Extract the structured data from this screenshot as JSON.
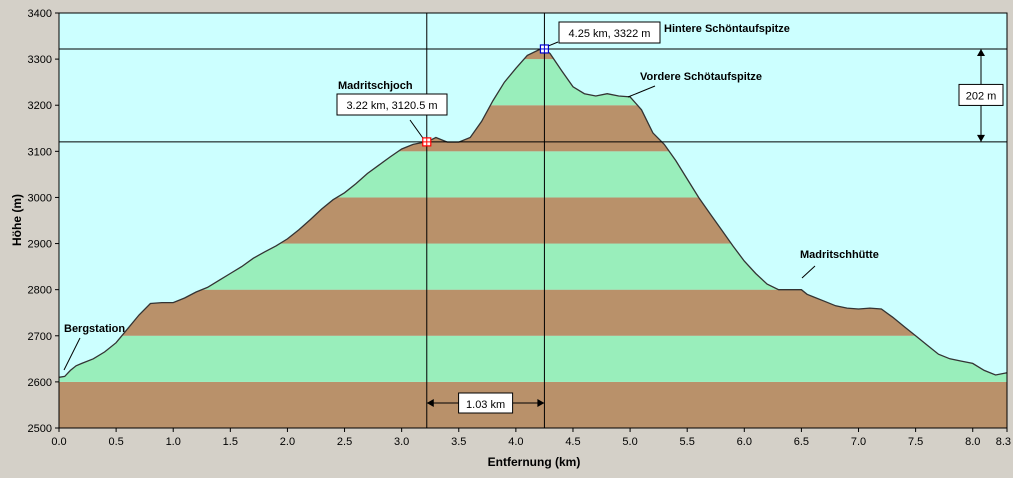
{
  "colors": {
    "background": "#d4d0c8",
    "plot_background": "#ccffff",
    "band_green": "#99eebb",
    "band_brown": "#b9916a",
    "profile_line": "#333333",
    "marker_red": "#ff0000",
    "marker_blue": "#0000cc",
    "callout_box": "#ffffff"
  },
  "chart_data": {
    "type": "area",
    "title": "",
    "xlabel": "Entfernung  (km)",
    "ylabel": "Höhe (m)",
    "xlim": [
      0,
      8.3
    ],
    "ylim": [
      2500,
      3400
    ],
    "grid": false,
    "x_ticks": [
      0,
      0.5,
      1,
      1.5,
      2,
      2.5,
      3,
      3.5,
      4,
      4.5,
      5,
      5.5,
      6,
      6.5,
      7,
      7.5,
      8,
      8.3
    ],
    "x_tick_labels": [
      "0.0",
      "0.5",
      "1.0",
      "1.5",
      "2.0",
      "2.5",
      "3.0",
      "3.5",
      "4.0",
      "4.5",
      "5.0",
      "5.5",
      "6.0",
      "6.5",
      "7.0",
      "7.5",
      "8.0",
      "8.3"
    ],
    "y_ticks": [
      2500,
      2600,
      2700,
      2800,
      2900,
      3000,
      3100,
      3200,
      3300,
      3400
    ],
    "y_tick_labels": [
      "2500",
      "2600",
      "2700",
      "2800",
      "2900",
      "3000",
      "3100",
      "3200",
      "3300",
      "3400"
    ],
    "elevation_bands": {
      "step": 100,
      "from": 2500,
      "to": 3400,
      "colors_bottom_up": [
        "brown",
        "green"
      ]
    },
    "profile": {
      "x": [
        0,
        0.05,
        0.1,
        0.15,
        0.2,
        0.3,
        0.4,
        0.5,
        0.6,
        0.7,
        0.8,
        0.9,
        1.0,
        1.1,
        1.2,
        1.3,
        1.4,
        1.5,
        1.6,
        1.7,
        1.8,
        1.9,
        2.0,
        2.1,
        2.2,
        2.3,
        2.4,
        2.5,
        2.6,
        2.7,
        2.8,
        2.9,
        3.0,
        3.1,
        3.2,
        3.22,
        3.3,
        3.4,
        3.5,
        3.6,
        3.7,
        3.8,
        3.9,
        4.0,
        4.1,
        4.2,
        4.25,
        4.3,
        4.4,
        4.5,
        4.6,
        4.7,
        4.8,
        4.9,
        5.0,
        5.1,
        5.2,
        5.3,
        5.4,
        5.5,
        5.6,
        5.7,
        5.8,
        5.9,
        6.0,
        6.1,
        6.2,
        6.3,
        6.4,
        6.5,
        6.55,
        6.6,
        6.7,
        6.8,
        6.9,
        7.0,
        7.1,
        7.2,
        7.3,
        7.4,
        7.5,
        7.6,
        7.7,
        7.8,
        7.9,
        8.0,
        8.1,
        8.2,
        8.3
      ],
      "y": [
        2610,
        2612,
        2625,
        2635,
        2640,
        2650,
        2665,
        2685,
        2715,
        2745,
        2770,
        2772,
        2772,
        2782,
        2795,
        2805,
        2820,
        2835,
        2850,
        2868,
        2882,
        2895,
        2910,
        2930,
        2952,
        2975,
        2995,
        3010,
        3030,
        3052,
        3070,
        3088,
        3105,
        3115,
        3120,
        3120.5,
        3130,
        3120,
        3120,
        3130,
        3165,
        3210,
        3250,
        3280,
        3308,
        3320,
        3322,
        3312,
        3275,
        3240,
        3225,
        3220,
        3225,
        3220,
        3218,
        3190,
        3140,
        3115,
        3080,
        3040,
        3000,
        2965,
        2930,
        2895,
        2862,
        2835,
        2812,
        2800,
        2800,
        2800,
        2790,
        2785,
        2775,
        2765,
        2760,
        2758,
        2760,
        2758,
        2740,
        2720,
        2700,
        2680,
        2660,
        2650,
        2645,
        2640,
        2625,
        2615,
        2620
      ]
    },
    "annotations": [
      {
        "label": "Bergstation",
        "x": 0.0,
        "y": 2610
      },
      {
        "label": "Madritschjoch",
        "x": 3.22,
        "y": 3120.5
      },
      {
        "label": "Hintere Schöntaufspitze",
        "x": 4.25,
        "y": 3322
      },
      {
        "label": "Vordere Schötaufspitze",
        "x": 4.9,
        "y": 3220
      },
      {
        "label": "Madritschhütte",
        "x": 6.55,
        "y": 2790
      }
    ],
    "markers": [
      {
        "label": "3.22 km, 3120.5 m",
        "x": 3.22,
        "y": 3120.5,
        "color": "red"
      },
      {
        "label": "4.25 km, 3322 m",
        "x": 4.25,
        "y": 3322,
        "color": "blue"
      }
    ],
    "dimension_labels": {
      "horizontal": "1.03 km",
      "vertical": "202 m"
    }
  }
}
